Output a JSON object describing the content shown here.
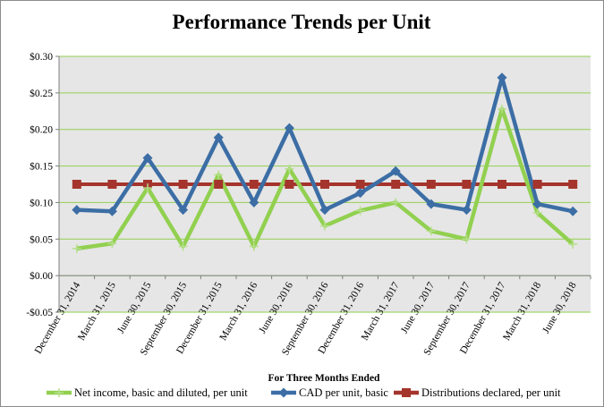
{
  "chart_data": {
    "type": "line",
    "title": "Performance Trends per Unit",
    "xlabel": "For Three Months  Ended",
    "ylabel": "",
    "ylim": [
      -0.05,
      0.3
    ],
    "ytick_labels": [
      "$0.30",
      "$0.25",
      "$0.20",
      "$0.15",
      "$0.10",
      "$0.05",
      "$0.00",
      "-$0.05"
    ],
    "ytick_values": [
      0.3,
      0.25,
      0.2,
      0.15,
      0.1,
      0.05,
      0.0,
      -0.05
    ],
    "grid": true,
    "legend_position": "bottom",
    "plot_background": "#e6e6e6",
    "categories": [
      "December 31, 2014",
      "March 31, 2015",
      "June 30, 2015",
      "September 30, 2015",
      "December 31, 2015",
      "March 31, 2016",
      "June 30, 2016",
      "September 30, 2016",
      "December 31, 2016",
      "March 31, 2017",
      "June 30, 2017",
      "September 30, 2017",
      "December 31, 2017",
      "March 31, 2018",
      "June 30, 2018"
    ],
    "series": [
      {
        "name": "Net income, basic and diluted, per unit",
        "color": "#92d050",
        "marker": "plus",
        "values": [
          0.037,
          0.044,
          0.12,
          0.04,
          0.138,
          0.04,
          0.146,
          0.068,
          0.089,
          0.1,
          0.061,
          0.05,
          0.228,
          0.086,
          0.043
        ]
      },
      {
        "name": "CAD per unit, basic",
        "color": "#3c6ea5",
        "marker": "diamond",
        "values": [
          0.09,
          0.088,
          0.161,
          0.09,
          0.189,
          0.1,
          0.202,
          0.09,
          0.113,
          0.143,
          0.098,
          0.09,
          0.271,
          0.098,
          0.088
        ]
      },
      {
        "name": "Distributions declared, per unit",
        "color": "#a5342c",
        "marker": "square",
        "values": [
          0.125,
          0.125,
          0.125,
          0.125,
          0.125,
          0.125,
          0.125,
          0.125,
          0.125,
          0.125,
          0.125,
          0.125,
          0.125,
          0.125,
          0.125
        ]
      }
    ]
  }
}
